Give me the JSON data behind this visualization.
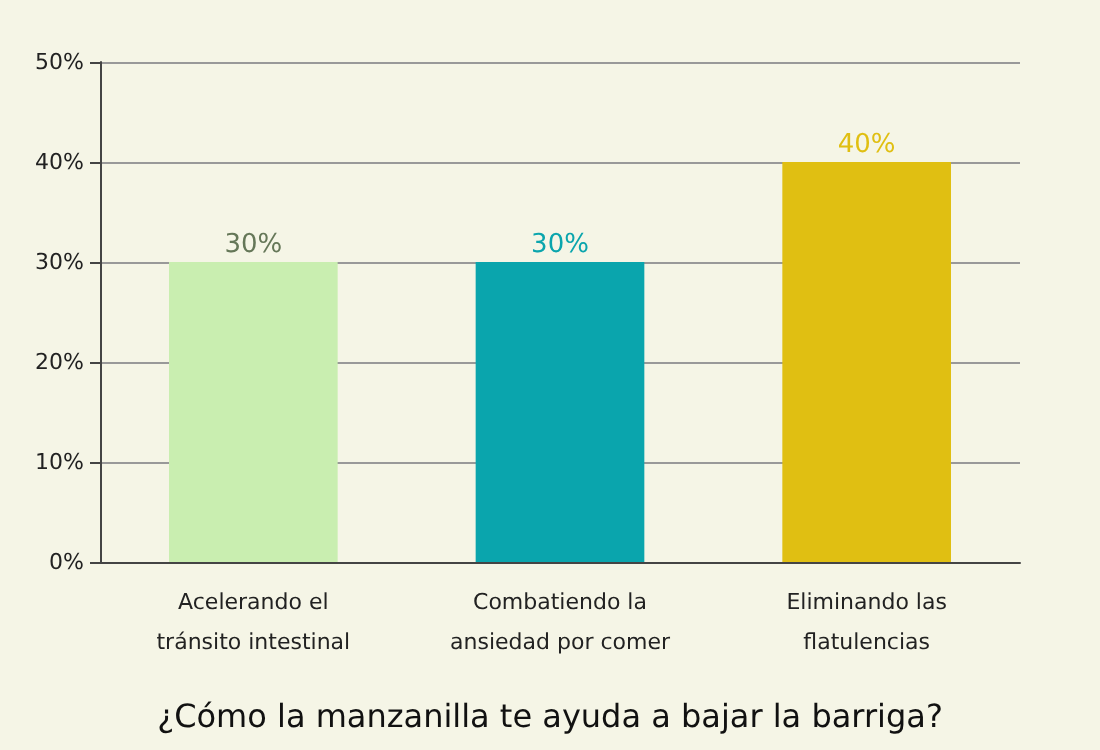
{
  "chart_data": {
    "type": "bar",
    "title": "¿Cómo la manzanilla te ayuda a bajar la barriga?",
    "categories": [
      "Acelerando el\ntránsito intestinal",
      "Combatiendo la\nansiedad por comer",
      "Eliminando las\nflatulencias"
    ],
    "values": [
      30,
      30,
      40
    ],
    "colors": [
      "#c9eeb0",
      "#0aa5ad",
      "#e0bf12"
    ],
    "value_labels": [
      "30%",
      "30%",
      "40%"
    ],
    "ylim": [
      0,
      50
    ],
    "yticks": [
      {
        "value": 0,
        "label": "0%"
      },
      {
        "value": 10,
        "label": "10%"
      },
      {
        "value": 20,
        "label": "20%"
      },
      {
        "value": 30,
        "label": "30%"
      },
      {
        "value": 40,
        "label": "40%"
      },
      {
        "value": 50,
        "label": "50%"
      }
    ],
    "grid": "y"
  }
}
